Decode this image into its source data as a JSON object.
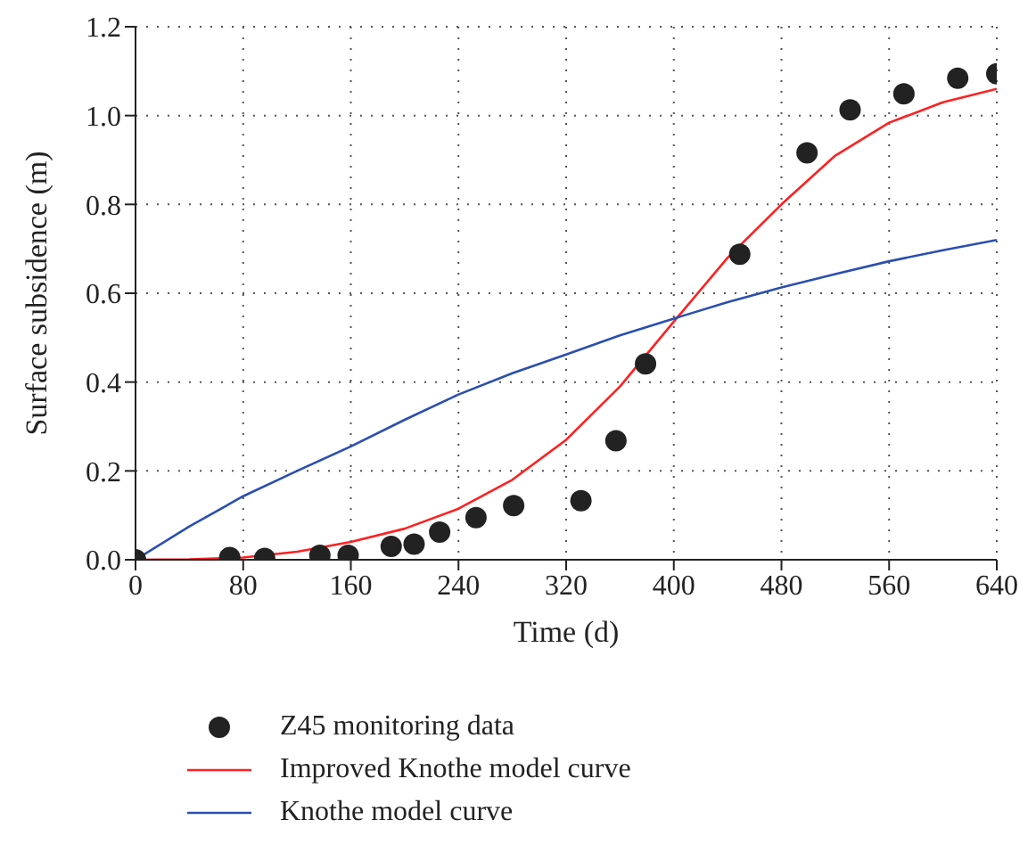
{
  "chart_data": {
    "type": "line",
    "xlabel": "Time (d)",
    "ylabel": "Surface subsidence (m)",
    "xlim": [
      0,
      640
    ],
    "ylim": [
      0,
      1.2
    ],
    "xticks": [
      0,
      80,
      160,
      240,
      320,
      400,
      480,
      560,
      640
    ],
    "yticks": [
      {
        "value": 0,
        "label": "0.0"
      },
      {
        "value": 0.2,
        "label": "0.2"
      },
      {
        "value": 0.4,
        "label": "0.4"
      },
      {
        "value": 0.6,
        "label": "0.6"
      },
      {
        "value": 0.8,
        "label": "0.8"
      },
      {
        "value": 1,
        "label": "1.0"
      },
      {
        "value": 1.2,
        "label": "1.2"
      }
    ],
    "grid": true,
    "legend": "bottom",
    "series": [
      {
        "name": "Z45 monitoring data",
        "type": "scatter",
        "marker": "circle",
        "color": "#222222",
        "x": [
          0,
          70,
          96,
          137,
          158,
          190,
          207,
          226,
          253,
          281,
          331,
          357,
          379,
          449,
          499,
          531,
          571,
          611,
          640
        ],
        "values": [
          0,
          0.005,
          0.003,
          0.01,
          0.01,
          0.03,
          0.035,
          0.062,
          0.095,
          0.122,
          0.133,
          0.268,
          0.441,
          0.688,
          0.916,
          1.013,
          1.049,
          1.084,
          1.094
        ]
      },
      {
        "name": "Improved Knothe model curve",
        "marker": "none",
        "color": "#ff2020",
        "x": [
          0,
          40,
          80,
          120,
          160,
          200,
          240,
          280,
          320,
          360,
          400,
          440,
          480,
          520,
          560,
          600,
          640
        ],
        "values": [
          0,
          0.001,
          0.005,
          0.018,
          0.04,
          0.07,
          0.115,
          0.18,
          0.27,
          0.39,
          0.536,
          0.68,
          0.8,
          0.91,
          0.984,
          1.03,
          1.06
        ]
      },
      {
        "name": "Knothe model curve",
        "marker": "none",
        "color": "#2a4fb0",
        "x": [
          0,
          40,
          80,
          120,
          160,
          200,
          240,
          280,
          320,
          360,
          400,
          440,
          480,
          520,
          560,
          600,
          640
        ],
        "values": [
          0,
          0.075,
          0.143,
          0.2,
          0.255,
          0.315,
          0.372,
          0.42,
          0.462,
          0.505,
          0.543,
          0.58,
          0.613,
          0.643,
          0.672,
          0.697,
          0.72
        ]
      }
    ]
  }
}
